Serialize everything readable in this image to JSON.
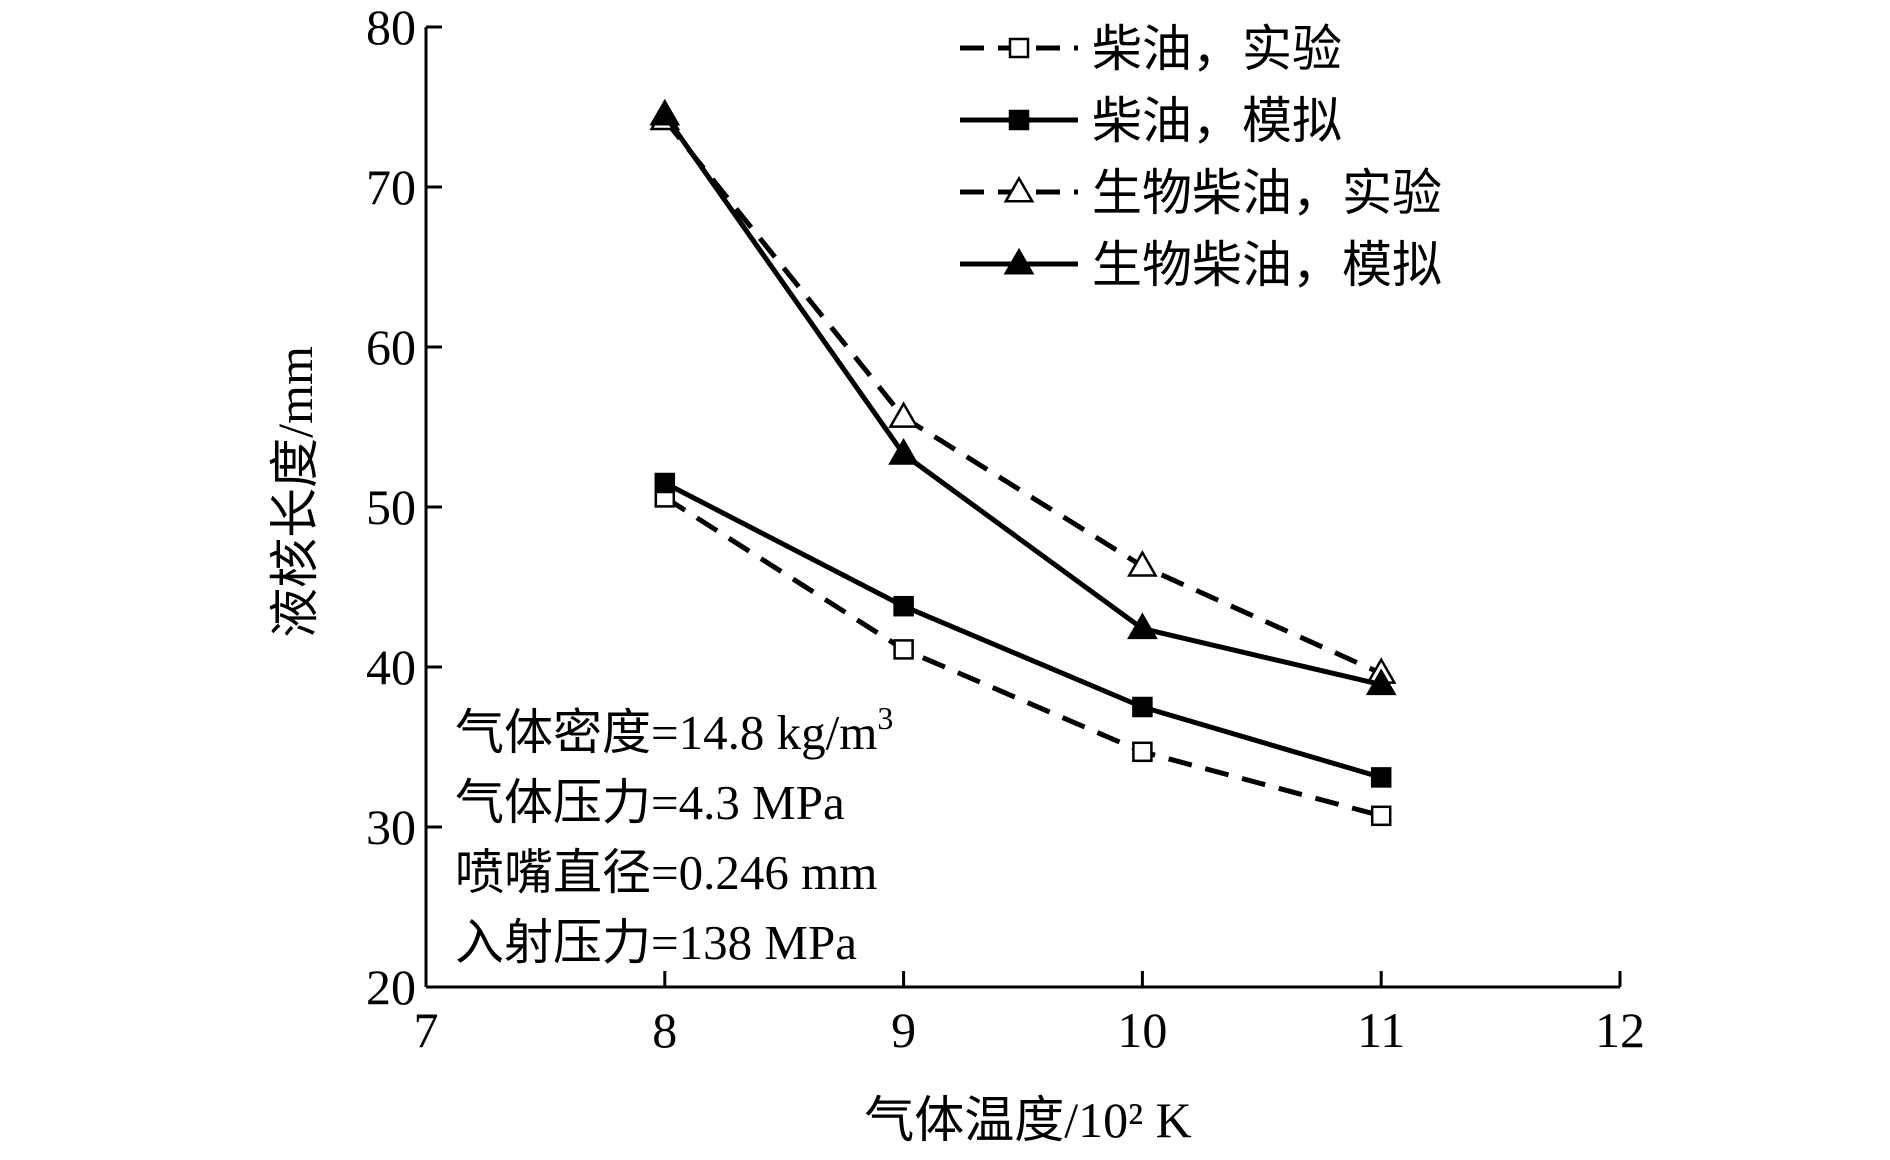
{
  "chart_data": {
    "type": "line",
    "title": "",
    "xlabel": "气体温度/10² K",
    "ylabel": "液核长度/mm",
    "xlim": [
      7,
      12
    ],
    "ylim": [
      20,
      80
    ],
    "xticks": [
      7,
      8,
      9,
      10,
      11,
      12
    ],
    "yticks": [
      20,
      30,
      40,
      50,
      60,
      70,
      80
    ],
    "grid": false,
    "legend_position": "top-right",
    "series": [
      {
        "name": "柴油，实验",
        "style": "dashed",
        "marker": "square-open",
        "color": "#000000",
        "x": [
          8,
          9,
          10,
          11
        ],
        "y": [
          50.6,
          41.1,
          34.7,
          30.7
        ]
      },
      {
        "name": "柴油，模拟",
        "style": "solid",
        "marker": "square-filled",
        "color": "#000000",
        "x": [
          8,
          9,
          10,
          11
        ],
        "y": [
          51.5,
          43.8,
          37.5,
          33.1
        ]
      },
      {
        "name": "生物柴油，实验",
        "style": "dashed",
        "marker": "triangle-open",
        "color": "#000000",
        "x": [
          8,
          9,
          10,
          11
        ],
        "y": [
          74.2,
          55.6,
          46.3,
          39.6
        ]
      },
      {
        "name": "生物柴油，模拟",
        "style": "solid",
        "marker": "triangle-filled",
        "color": "#000000",
        "x": [
          8,
          9,
          10,
          11
        ],
        "y": [
          74.5,
          53.3,
          42.4,
          38.9
        ]
      }
    ],
    "annotations": [
      {
        "text": "气体密度=14.8 kg/m",
        "sup": "3"
      },
      {
        "text": "气体压力=4.3 MPa",
        "sup": ""
      },
      {
        "text": "喷嘴直径=0.246 mm",
        "sup": ""
      },
      {
        "text": "入射压力=138 MPa",
        "sup": ""
      }
    ]
  }
}
